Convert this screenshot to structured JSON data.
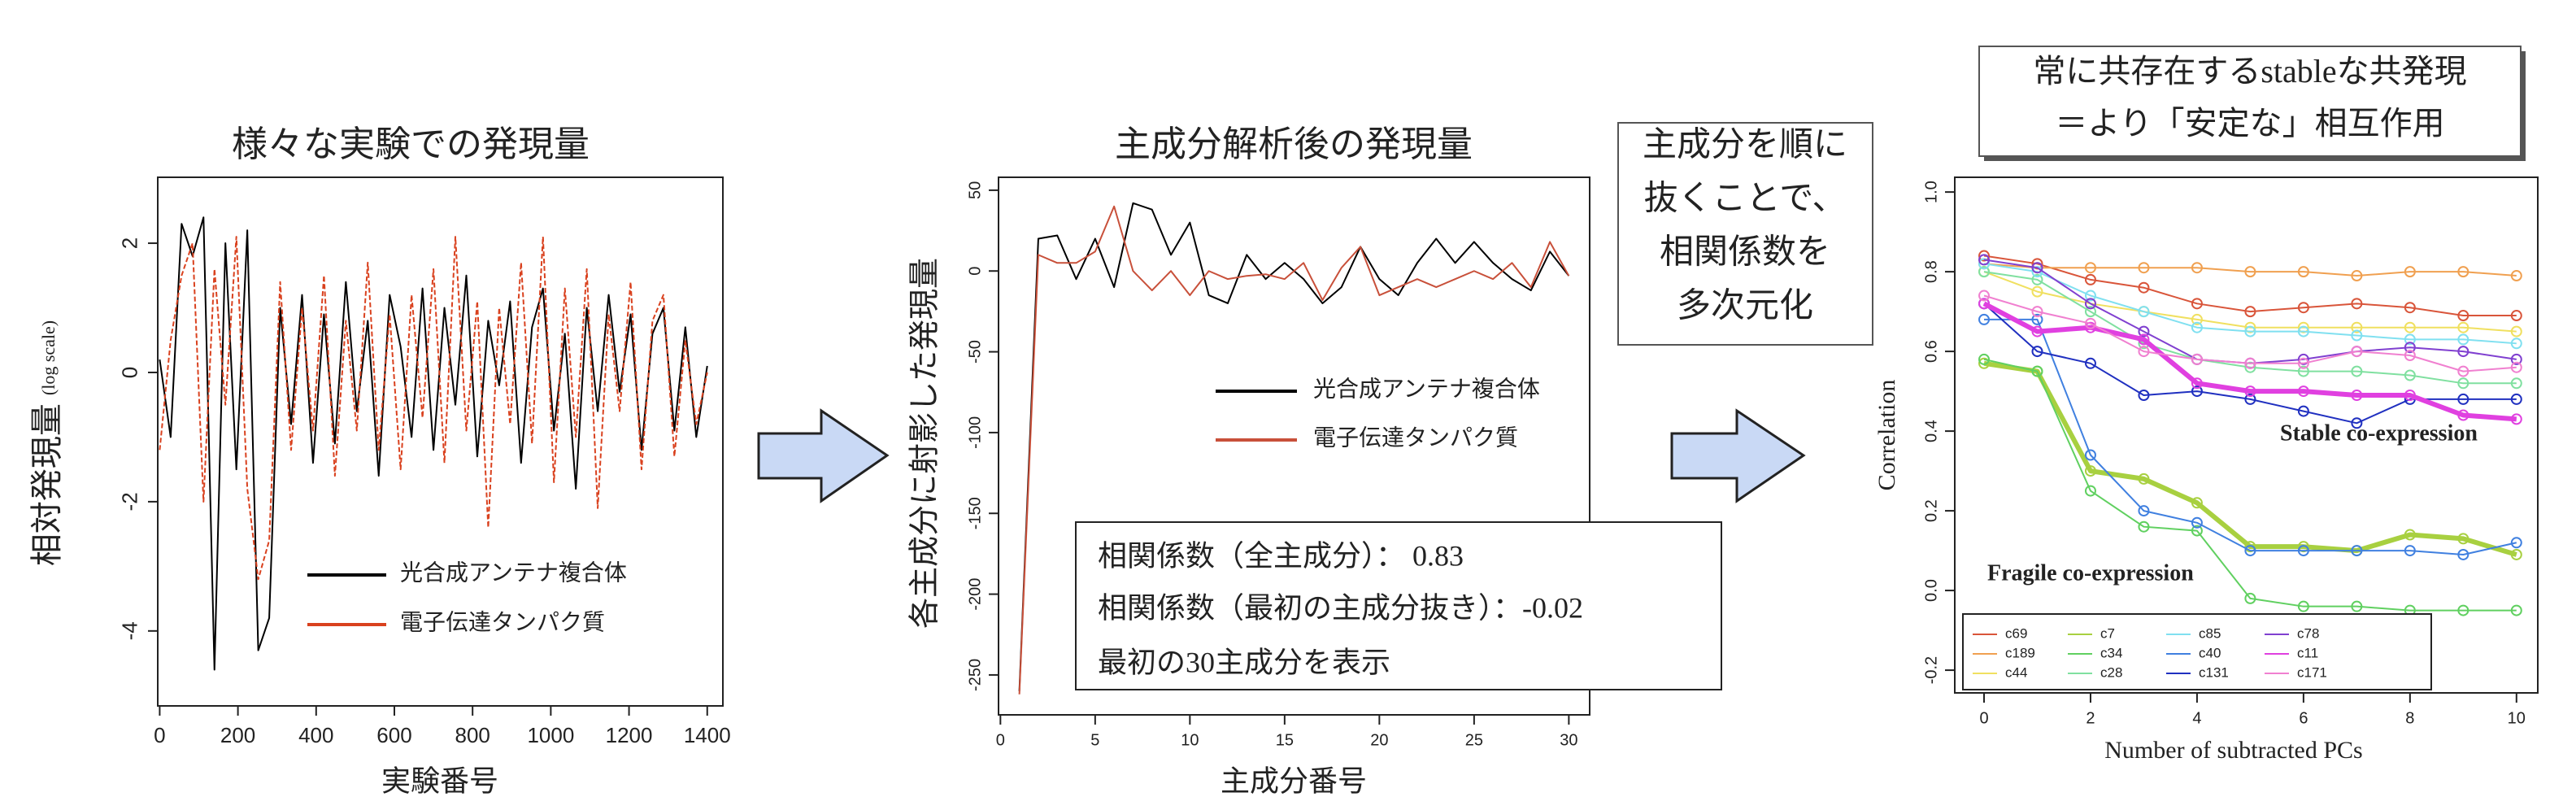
{
  "chart_data": [
    {
      "type": "line",
      "title": "様々な実験での発現量",
      "xlabel": "実験番号",
      "ylabel": "相対発現量",
      "ylabel_note": "(log scale)",
      "x": [
        0,
        28,
        56,
        84,
        112,
        140,
        168,
        196,
        224,
        252,
        280,
        308,
        336,
        364,
        392,
        420,
        448,
        476,
        504,
        532,
        560,
        588,
        616,
        644,
        672,
        700,
        728,
        756,
        784,
        812,
        840,
        868,
        896,
        924,
        952,
        980,
        1008,
        1036,
        1064,
        1092,
        1120,
        1148,
        1176,
        1204,
        1232,
        1260,
        1288,
        1316,
        1344,
        1372,
        1400
      ],
      "series": [
        {
          "name": "光合成アンテナ複合体",
          "color": "#000000",
          "linestyle": "solid",
          "values": [
            0.2,
            -1.0,
            2.3,
            1.8,
            2.4,
            -4.6,
            2.0,
            -1.5,
            2.2,
            -4.3,
            -3.8,
            1.0,
            -0.8,
            1.2,
            -1.4,
            0.9,
            -1.1,
            1.4,
            -0.6,
            0.8,
            -1.6,
            1.2,
            0.4,
            -1.0,
            1.3,
            -1.2,
            1.0,
            -0.5,
            1.5,
            -1.3,
            0.8,
            -0.2,
            1.1,
            -1.4,
            0.7,
            1.3,
            -0.9,
            0.6,
            -1.8,
            1.0,
            -0.6,
            1.2,
            -0.3,
            0.9,
            -1.2,
            0.6,
            1.0,
            -0.9,
            0.7,
            -1.0,
            0.1
          ]
        },
        {
          "name": "電子伝達タンパク質",
          "color": "#d9411e",
          "linestyle": "dashed",
          "values": [
            -1.2,
            0.5,
            1.5,
            2.0,
            -2.0,
            1.6,
            -0.5,
            2.1,
            -1.8,
            -3.2,
            -2.6,
            1.4,
            -1.2,
            1.0,
            -0.9,
            1.5,
            -1.6,
            0.8,
            -0.9,
            1.7,
            -1.2,
            0.9,
            -1.5,
            1.2,
            -0.7,
            1.6,
            -1.4,
            2.1,
            -0.9,
            1.1,
            -2.4,
            1.0,
            -0.8,
            1.7,
            -1.1,
            2.1,
            -1.7,
            1.3,
            -1.0,
            1.6,
            -2.1,
            0.9,
            -0.6,
            1.4,
            -1.5,
            0.8,
            1.2,
            -1.3,
            0.5,
            -0.8,
            0.0
          ]
        }
      ],
      "xlim": [
        -5,
        1440
      ],
      "xticks": [
        0,
        200,
        400,
        600,
        800,
        1000,
        1200,
        1400
      ],
      "ylim": [
        -5.16,
        3.02
      ],
      "yticks": [
        -4,
        -2,
        0,
        2
      ]
    },
    {
      "type": "line",
      "title": "主成分解析後の発現量",
      "xlabel": "主成分番号",
      "ylabel": "各主成分に射影した発現量",
      "x": [
        1,
        2,
        3,
        4,
        5,
        6,
        7,
        8,
        9,
        10,
        11,
        12,
        13,
        14,
        15,
        16,
        17,
        18,
        19,
        20,
        21,
        22,
        23,
        24,
        25,
        26,
        27,
        28,
        29,
        30
      ],
      "series": [
        {
          "name": "光合成アンテナ複合体",
          "color": "#000000",
          "linestyle": "solid",
          "values": [
            -260,
            20,
            22,
            -5,
            20,
            -10,
            42,
            38,
            10,
            30,
            -15,
            -20,
            10,
            -5,
            5,
            -5,
            -20,
            -10,
            15,
            -5,
            -15,
            5,
            20,
            5,
            18,
            5,
            -5,
            -12,
            12,
            -3
          ]
        },
        {
          "name": "電子伝達タンパク質",
          "color": "#c8503a",
          "linestyle": "solid",
          "values": [
            -262,
            10,
            5,
            5,
            12,
            40,
            0,
            -12,
            0,
            -15,
            0,
            -5,
            -3,
            -2,
            -5,
            5,
            -18,
            2,
            15,
            -15,
            -10,
            -5,
            -10,
            -5,
            0,
            -5,
            5,
            -10,
            18,
            -3
          ]
        }
      ],
      "xlim": [
        -0.1,
        31.1
      ],
      "xticks": [
        0,
        5,
        10,
        15,
        20,
        25,
        30
      ],
      "ylim": [
        -274.7,
        58
      ],
      "yticks": [
        -250,
        -200,
        -150,
        -100,
        -50,
        0,
        50
      ],
      "annotations": [
        "相関係数（全主成分）： 0.83",
        "相関係数（最初の主成分抜き）：-0.02",
        "最初の30主成分を表示"
      ]
    },
    {
      "type": "line",
      "markers": true,
      "xlabel": "Number of subtracted PCs",
      "ylabel": "Correlation",
      "header": [
        "常に共存在するstableな共発現",
        "＝より「安定な」相互作用"
      ],
      "annotations": [
        {
          "text": "Stable co-expression",
          "color": "#d04030"
        },
        {
          "text": "Fragile co-expression",
          "color": "#e05020"
        }
      ],
      "x": [
        0,
        1,
        2,
        3,
        4,
        5,
        6,
        7,
        8,
        9,
        10
      ],
      "series": [
        {
          "name": "c69",
          "color": "#d9553a",
          "linewidth": 1,
          "values": [
            0.84,
            0.82,
            0.78,
            0.76,
            0.72,
            0.7,
            0.71,
            0.72,
            0.71,
            0.69,
            0.69
          ]
        },
        {
          "name": "c189",
          "color": "#f0a050",
          "linewidth": 1,
          "values": [
            0.82,
            0.81,
            0.81,
            0.81,
            0.81,
            0.8,
            0.8,
            0.79,
            0.8,
            0.8,
            0.79
          ]
        },
        {
          "name": "c44",
          "color": "#f0e060",
          "linewidth": 1,
          "values": [
            0.8,
            0.75,
            0.72,
            0.7,
            0.68,
            0.66,
            0.66,
            0.66,
            0.66,
            0.66,
            0.65
          ]
        },
        {
          "name": "c7",
          "color": "#a8d040",
          "linewidth": 3,
          "values": [
            0.57,
            0.55,
            0.3,
            0.28,
            0.22,
            0.11,
            0.11,
            0.1,
            0.14,
            0.13,
            0.09
          ]
        },
        {
          "name": "c34",
          "color": "#60d060",
          "linewidth": 1,
          "values": [
            0.58,
            0.55,
            0.25,
            0.16,
            0.15,
            -0.02,
            -0.04,
            -0.04,
            -0.05,
            -0.05,
            -0.05
          ]
        },
        {
          "name": "c28",
          "color": "#80e0a0",
          "linewidth": 1,
          "values": [
            0.8,
            0.78,
            0.7,
            0.62,
            0.58,
            0.56,
            0.55,
            0.55,
            0.54,
            0.52,
            0.52
          ]
        },
        {
          "name": "c85",
          "color": "#80e0f0",
          "linewidth": 1,
          "values": [
            0.82,
            0.8,
            0.74,
            0.7,
            0.66,
            0.65,
            0.65,
            0.64,
            0.63,
            0.63,
            0.62
          ]
        },
        {
          "name": "c40",
          "color": "#4080e0",
          "linewidth": 1,
          "values": [
            0.68,
            0.68,
            0.34,
            0.2,
            0.17,
            0.1,
            0.1,
            0.1,
            0.1,
            0.09,
            0.12
          ]
        },
        {
          "name": "c131",
          "color": "#2030c0",
          "linewidth": 1,
          "values": [
            0.72,
            0.6,
            0.57,
            0.49,
            0.5,
            0.48,
            0.45,
            0.42,
            0.48,
            0.48,
            0.48
          ]
        },
        {
          "name": "c78",
          "color": "#8040d0",
          "linewidth": 1,
          "values": [
            0.83,
            0.81,
            0.72,
            0.65,
            0.58,
            0.57,
            0.58,
            0.6,
            0.61,
            0.6,
            0.58
          ]
        },
        {
          "name": "c11",
          "color": "#e040e0",
          "linewidth": 3,
          "values": [
            0.72,
            0.65,
            0.66,
            0.63,
            0.52,
            0.5,
            0.5,
            0.49,
            0.49,
            0.44,
            0.43
          ]
        },
        {
          "name": "c171",
          "color": "#f080d0",
          "linewidth": 1,
          "values": [
            0.74,
            0.7,
            0.67,
            0.6,
            0.58,
            0.57,
            0.57,
            0.6,
            0.59,
            0.55,
            0.56
          ]
        }
      ],
      "xlim": [
        -0.55,
        10.4
      ],
      "xticks": [
        0,
        2,
        4,
        6,
        8,
        10
      ],
      "ylim": [
        -0.257,
        1.037
      ],
      "yticks": [
        -0.2,
        {
          "value": 0,
          "label": "0.0"
        },
        0.2,
        0.4,
        0.6,
        0.8,
        {
          "value": 1,
          "label": "1.0"
        }
      ]
    }
  ],
  "middle_note": [
    "主成分を順に",
    "抜くことで、",
    "相関係数を",
    "多次元化"
  ]
}
